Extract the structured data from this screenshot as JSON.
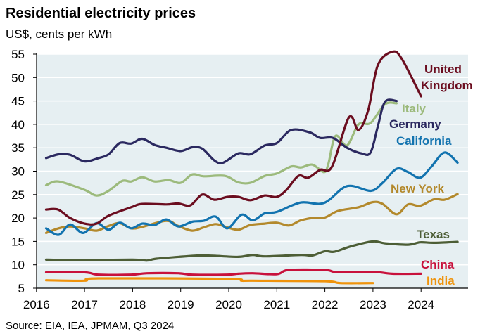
{
  "chart_data": {
    "type": "line",
    "title": "Residential electricity prices",
    "subtitle": "US$, cents per kWh",
    "source": "Source: EIA, IEA, JPMAM, Q3 2024",
    "xlabel": "",
    "ylabel": "",
    "xlim": [
      2016,
      2025
    ],
    "ylim": [
      5,
      55
    ],
    "x_ticks": [
      "2016",
      "2017",
      "2018",
      "2019",
      "2020",
      "2021",
      "2022",
      "2023",
      "2024"
    ],
    "y_ticks": [
      "5",
      "10",
      "15",
      "20",
      "25",
      "30",
      "35",
      "40",
      "45",
      "50",
      "55"
    ],
    "grid": "horizontal",
    "legend": "inline labels at right end of lines",
    "plot_background": "#e6eff2",
    "series": [
      {
        "name": "United Kingdom",
        "color": "#6b0d1f",
        "x": [
          2016.2,
          2016.45,
          2016.7,
          2017.0,
          2017.25,
          2017.5,
          2017.97,
          2018.2,
          2018.7,
          2018.95,
          2019.2,
          2019.45,
          2019.7,
          2019.97,
          2020.2,
          2020.45,
          2020.75,
          2021.0,
          2021.2,
          2021.45,
          2021.65,
          2021.9,
          2022.15,
          2022.5,
          2022.7,
          2022.9,
          2023.1,
          2023.4,
          2023.6,
          2024.0
        ],
        "y": [
          21.8,
          21.8,
          20.0,
          18.8,
          18.8,
          20.5,
          22.3,
          23.0,
          22.9,
          23.1,
          22.7,
          25.0,
          23.9,
          24.5,
          24.5,
          23.8,
          24.8,
          24.5,
          26.0,
          29.0,
          28.6,
          30.3,
          31.0,
          41.5,
          38.8,
          43.0,
          52.6,
          55.5,
          54.0,
          46.0
        ]
      },
      {
        "name": "Germany",
        "color": "#2b2960",
        "x": [
          2016.2,
          2016.46,
          2016.7,
          2017.0,
          2017.29,
          2017.5,
          2017.73,
          2017.97,
          2018.2,
          2018.46,
          2018.7,
          2019.0,
          2019.24,
          2019.45,
          2019.7,
          2019.88,
          2020.2,
          2020.45,
          2020.75,
          2021.0,
          2021.3,
          2021.68,
          2021.9,
          2022.17,
          2022.46,
          2022.76,
          2022.95,
          2023.1,
          2023.25,
          2023.49
        ],
        "y": [
          32.8,
          33.6,
          33.5,
          32.1,
          32.8,
          33.6,
          36.0,
          35.9,
          36.9,
          35.6,
          35.0,
          34.3,
          35.1,
          34.8,
          32.3,
          31.8,
          33.8,
          33.6,
          35.5,
          36.0,
          38.8,
          38.3,
          37.1,
          37.1,
          35.0,
          33.8,
          34.0,
          39.5,
          44.8,
          45.0
        ]
      },
      {
        "name": "Italy",
        "color": "#9cba7c",
        "x": [
          2016.2,
          2016.46,
          2017.0,
          2017.25,
          2017.5,
          2017.78,
          2017.97,
          2018.2,
          2018.46,
          2018.75,
          2019.0,
          2019.24,
          2019.48,
          2019.92,
          2020.2,
          2020.45,
          2020.75,
          2021.0,
          2021.3,
          2021.5,
          2021.74,
          2021.98,
          2022.07,
          2022.22,
          2022.46,
          2022.7,
          2022.95,
          2023.25,
          2023.49
        ],
        "y": [
          27.0,
          27.8,
          26.0,
          24.8,
          25.8,
          27.9,
          27.8,
          28.7,
          27.8,
          28.1,
          27.5,
          29.3,
          28.9,
          29.0,
          27.6,
          27.5,
          29.0,
          29.5,
          31.0,
          30.8,
          31.4,
          29.8,
          31.5,
          37.5,
          35.5,
          40.0,
          40.3,
          44.3,
          44.5
        ]
      },
      {
        "name": "California",
        "color": "#1273af",
        "x": [
          2016.2,
          2016.46,
          2016.7,
          2016.97,
          2017.25,
          2017.5,
          2017.73,
          2017.97,
          2018.2,
          2018.46,
          2018.7,
          2018.95,
          2019.24,
          2019.48,
          2019.73,
          2019.97,
          2020.27,
          2020.5,
          2020.75,
          2021.0,
          2021.5,
          2021.98,
          2022.46,
          2022.95,
          2023.2,
          2023.49,
          2023.73,
          2023.98,
          2024.22,
          2024.49,
          2024.76
        ],
        "y": [
          17.8,
          16.4,
          18.6,
          16.8,
          18.9,
          17.5,
          19.0,
          17.8,
          18.8,
          18.5,
          19.7,
          18.2,
          19.2,
          19.4,
          20.3,
          17.8,
          20.7,
          19.5,
          21.0,
          21.3,
          23.3,
          23.2,
          26.8,
          25.8,
          27.5,
          30.5,
          29.8,
          28.6,
          31.0,
          34.0,
          31.8
        ]
      },
      {
        "name": "New York",
        "color": "#b3892c",
        "x": [
          2016.2,
          2016.46,
          2016.7,
          2017.0,
          2017.25,
          2017.5,
          2017.73,
          2017.97,
          2018.2,
          2018.7,
          2018.95,
          2019.24,
          2019.48,
          2019.73,
          2019.97,
          2020.2,
          2020.45,
          2020.75,
          2021.0,
          2021.25,
          2021.5,
          2021.74,
          2022.0,
          2022.27,
          2022.7,
          2023.0,
          2023.2,
          2023.49,
          2023.73,
          2023.98,
          2024.27,
          2024.49,
          2024.76
        ],
        "y": [
          16.8,
          17.8,
          18.2,
          17.8,
          17.3,
          18.3,
          18.9,
          17.8,
          18.1,
          19.4,
          18.3,
          17.3,
          18.0,
          18.7,
          18.0,
          17.5,
          18.5,
          18.8,
          19.0,
          18.4,
          19.5,
          20.0,
          20.1,
          21.5,
          22.3,
          23.4,
          23.0,
          20.8,
          22.9,
          22.6,
          24.0,
          23.9,
          25.1
        ]
      },
      {
        "name": "Texas",
        "color": "#4d5e36",
        "x": [
          2016.2,
          2017.0,
          2018.0,
          2018.3,
          2018.5,
          2019.24,
          2019.48,
          2019.73,
          2020.2,
          2020.5,
          2020.75,
          2021.5,
          2021.74,
          2022.0,
          2022.2,
          2022.56,
          2023.0,
          2023.25,
          2023.73,
          2023.98,
          2024.27,
          2024.76
        ],
        "y": [
          11.1,
          11.0,
          11.1,
          10.9,
          11.3,
          11.9,
          12.0,
          11.9,
          11.7,
          12.1,
          11.8,
          12.1,
          12.0,
          12.9,
          12.8,
          14.0,
          15.0,
          14.6,
          14.3,
          14.8,
          14.7,
          14.9
        ]
      },
      {
        "name": "China",
        "color": "#c8113c",
        "x": [
          2016.2,
          2017.0,
          2017.29,
          2017.97,
          2018.3,
          2018.95,
          2019.24,
          2019.97,
          2020.2,
          2020.5,
          2021.0,
          2021.25,
          2022.0,
          2022.27,
          2023.0,
          2023.4,
          2024.0
        ],
        "y": [
          8.4,
          8.4,
          7.9,
          7.9,
          8.2,
          8.2,
          7.9,
          7.9,
          8.1,
          8.2,
          8.0,
          8.9,
          8.9,
          8.4,
          8.5,
          8.1,
          8.1
        ]
      },
      {
        "name": "India",
        "color": "#ef930c",
        "x": [
          2016.2,
          2017.0,
          2017.29,
          2019.97,
          2020.27,
          2020.5,
          2022.0,
          2022.32,
          2023.0
        ],
        "y": [
          6.7,
          6.6,
          7.1,
          7.0,
          6.6,
          6.6,
          6.5,
          6.1,
          6.1
        ]
      }
    ]
  }
}
